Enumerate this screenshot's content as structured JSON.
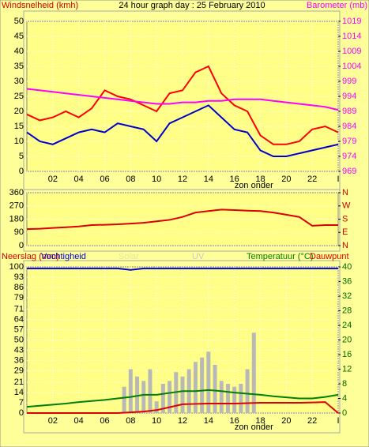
{
  "chart_data": [
    {
      "type": "line",
      "title": "24 hour graph day : 25 February 2010",
      "ylabel": "Windsnelheid (kmh)",
      "y2label": "Barometer (mb)",
      "x": [
        0,
        1,
        2,
        3,
        4,
        5,
        6,
        7,
        8,
        9,
        10,
        11,
        12,
        13,
        14,
        15,
        16,
        17,
        18,
        19,
        20,
        21,
        22,
        23,
        24
      ],
      "xlim": [
        0,
        24
      ],
      "xticks": [
        {
          "value": 2,
          "label": "02"
        },
        {
          "value": 4,
          "label": "04"
        },
        {
          "value": 6,
          "label": "06"
        },
        {
          "value": 8,
          "label": "08"
        },
        {
          "value": 10,
          "label": "10"
        },
        {
          "value": 12,
          "label": "12"
        },
        {
          "value": 14,
          "label": "14"
        },
        {
          "value": 16,
          "label": "16"
        },
        {
          "value": 18,
          "label": "18"
        },
        {
          "value": 20,
          "label": "20"
        },
        {
          "value": 22,
          "label": "22"
        },
        {
          "value": 24,
          "label": "I"
        }
      ],
      "ylim": [
        0,
        50
      ],
      "yticks": [
        0,
        5,
        10,
        15,
        20,
        25,
        30,
        35,
        40,
        45,
        50
      ],
      "y2lim": [
        969,
        1019
      ],
      "y2ticks": [
        969,
        974,
        979,
        984,
        989,
        994,
        999,
        1004,
        1009,
        1014,
        1019
      ],
      "grid": true,
      "annotations": [
        {
          "text": "zon onder",
          "x": 17.5
        }
      ],
      "series": [
        {
          "color": "#ff0000",
          "values": [
            19,
            17,
            18,
            20,
            18,
            21,
            27,
            25,
            24,
            22,
            20,
            26,
            27,
            33,
            35,
            26,
            22,
            20,
            12,
            9,
            9,
            10,
            14,
            15,
            13
          ]
        },
        {
          "color": "#0000cc",
          "values": [
            13,
            10,
            9,
            11,
            13,
            14,
            13,
            16,
            15,
            14,
            10,
            16,
            18,
            20,
            22,
            18,
            14,
            13,
            7,
            5,
            5,
            6,
            7,
            8,
            9
          ]
        },
        {
          "color": "#ff00ff",
          "axis": "y2",
          "values": [
            996.5,
            996,
            995.5,
            995,
            994.5,
            994,
            993.5,
            993,
            992.5,
            992,
            991.5,
            991.5,
            992,
            992,
            992.5,
            992.5,
            993,
            993,
            993,
            992.5,
            992,
            991.5,
            991,
            990.5,
            989.5
          ]
        }
      ]
    },
    {
      "type": "line",
      "x": [
        0,
        1,
        2,
        3,
        4,
        5,
        6,
        7,
        8,
        9,
        10,
        11,
        12,
        13,
        14,
        15,
        16,
        17,
        18,
        19,
        20,
        21,
        22,
        23,
        24
      ],
      "xlim": [
        0,
        24
      ],
      "ylim": [
        0,
        360
      ],
      "yticks": [
        0,
        90,
        180,
        270,
        360
      ],
      "y2lim": [
        0,
        360
      ],
      "y2ticks": [
        {
          "value": 0,
          "label": "N"
        },
        {
          "value": 90,
          "label": "E"
        },
        {
          "value": 180,
          "label": "S"
        },
        {
          "value": 270,
          "label": "W"
        },
        {
          "value": 360,
          "label": "N"
        }
      ],
      "grid": true,
      "series": [
        {
          "color": "#dd0000",
          "values": [
            112,
            115,
            120,
            125,
            130,
            140,
            142,
            145,
            150,
            155,
            165,
            175,
            195,
            225,
            235,
            245,
            242,
            238,
            235,
            225,
            210,
            195,
            135,
            140,
            140
          ]
        }
      ]
    },
    {
      "type": "line",
      "ylabel": "Neerslag (mm)",
      "annotations": [
        {
          "text": "UV",
          "x": 13.2,
          "top": true
        },
        {
          "text": "zon onder",
          "x": 17.5
        }
      ],
      "x": [
        0,
        1,
        2,
        3,
        4,
        5,
        6,
        7,
        8,
        9,
        10,
        11,
        12,
        13,
        14,
        15,
        16,
        17,
        18,
        19,
        20,
        21,
        22,
        23,
        24
      ],
      "xlim": [
        0,
        24
      ],
      "xticks": [
        {
          "value": 2,
          "label": "02"
        },
        {
          "value": 4,
          "label": "04"
        },
        {
          "value": 6,
          "label": "06"
        },
        {
          "value": 8,
          "label": "08"
        },
        {
          "value": 10,
          "label": "10"
        },
        {
          "value": 12,
          "label": "12"
        },
        {
          "value": 14,
          "label": "14"
        },
        {
          "value": 16,
          "label": "16"
        },
        {
          "value": 18,
          "label": "18"
        },
        {
          "value": 20,
          "label": "20"
        },
        {
          "value": 22,
          "label": "22"
        },
        {
          "value": 24,
          "label": "I"
        }
      ],
      "ylim": [
        0,
        100
      ],
      "yticks": [
        0,
        7,
        14,
        21,
        29,
        36,
        43,
        50,
        57,
        64,
        71,
        79,
        86,
        93,
        100
      ],
      "y2lim": [
        0,
        40
      ],
      "y2ticks": [
        0,
        4,
        8,
        12,
        16,
        20,
        24,
        28,
        32,
        36,
        40
      ],
      "grid": true,
      "series": [
        {
          "name": "Vochtigheid",
          "color": "#0000cc",
          "values": [
            99,
            99,
            99,
            99,
            99,
            99,
            99,
            99,
            98,
            99,
            99,
            99,
            99,
            99,
            99,
            99,
            99,
            99,
            99,
            99,
            99,
            99,
            99,
            99,
            99
          ]
        },
        {
          "name": "Solar",
          "color": "#b8b8b8",
          "kind": "bar",
          "x": [
            7.5,
            8,
            8.5,
            9,
            9.5,
            10,
            10.5,
            11,
            11.5,
            12,
            12.5,
            13,
            13.5,
            14,
            14.5,
            15,
            15.5,
            16,
            16.5,
            17,
            17.5
          ],
          "values": [
            18,
            30,
            25,
            22,
            30,
            8,
            20,
            22,
            28,
            25,
            30,
            35,
            38,
            42,
            33,
            22,
            20,
            18,
            20,
            30,
            55
          ]
        },
        {
          "name": "Temperatuur (°C)",
          "color": "#008000",
          "axis": "y2",
          "values": [
            1.7,
            2,
            2.3,
            2.6,
            3,
            3.3,
            3.6,
            4,
            4.4,
            5,
            5,
            5.5,
            6,
            6,
            6.3,
            6,
            5.6,
            5.3,
            5,
            4.6,
            4.3,
            4,
            4,
            4.4,
            5
          ]
        },
        {
          "name": "Dauwpunt",
          "color": "#dd0000",
          "axis": "y2",
          "values": [
            0,
            0,
            0,
            0,
            0,
            0,
            0,
            0,
            0.2,
            0.4,
            0.8,
            1.6,
            2.4,
            2.5,
            2.6,
            2.6,
            2.6,
            2.7,
            2.8,
            2.8,
            2.8,
            2.8,
            2.9,
            3,
            0
          ]
        }
      ]
    }
  ]
}
